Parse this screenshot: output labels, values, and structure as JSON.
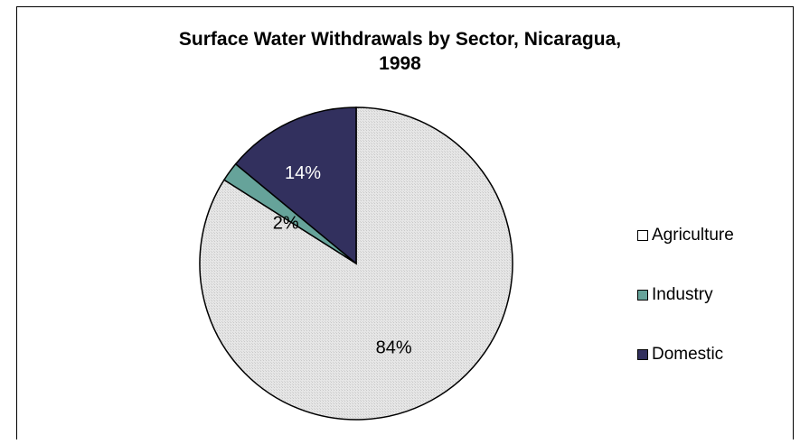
{
  "chart_data": {
    "type": "pie",
    "title_lines": [
      "Surface Water Withdrawals by Sector, Nicaragua,",
      "1998"
    ],
    "slices": [
      {
        "name": "Agriculture",
        "value": 84,
        "label": "84%",
        "color": "#E4E4E4"
      },
      {
        "name": "Industry",
        "value": 2,
        "label": "2%",
        "color": "#66A39A"
      },
      {
        "name": "Domestic",
        "value": 14,
        "label": "14%",
        "color": "#32305E"
      }
    ],
    "legend_placement": "right",
    "label_colors": {
      "Agriculture": "#000000",
      "Industry": "#000000",
      "Domestic": "#ffffff"
    }
  }
}
